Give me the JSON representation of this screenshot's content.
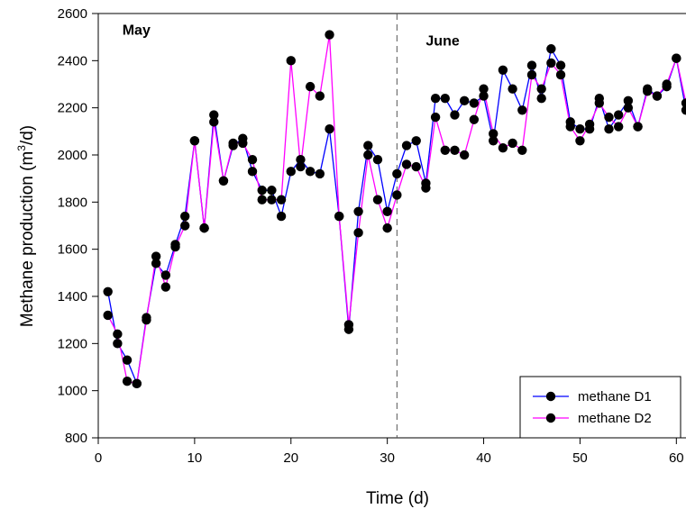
{
  "chart_data": {
    "type": "line",
    "title": "",
    "xlabel": "Time (d)",
    "ylabel_parts": [
      "Methane production (m",
      "3",
      "/d)"
    ],
    "xlim": [
      0,
      61
    ],
    "ylim": [
      800,
      2600
    ],
    "x_ticks": [
      0,
      10,
      20,
      30,
      40,
      50,
      60
    ],
    "y_ticks": [
      800,
      1000,
      1200,
      1400,
      1600,
      1800,
      2000,
      2200,
      2400,
      2600
    ],
    "grid": false,
    "legend_position": "bottom-right",
    "annotations": [
      {
        "text": "May",
        "x": 2.5,
        "y": 2510
      },
      {
        "text": "June",
        "x": 34,
        "y": 2465
      }
    ],
    "vline": {
      "x": 31,
      "style": "dashed"
    },
    "series": [
      {
        "name": "methane D1",
        "color": "#0000ff",
        "marker": "circle",
        "x": [
          1,
          2,
          3,
          4,
          5,
          6,
          7,
          8,
          9,
          10,
          11,
          12,
          13,
          14,
          15,
          16,
          17,
          18,
          19,
          20,
          21,
          22,
          23,
          24,
          25,
          26,
          27,
          28,
          29,
          30,
          31,
          32,
          33,
          34,
          35,
          36,
          37,
          38,
          39,
          40,
          41,
          42,
          43,
          44,
          45,
          46,
          47,
          48,
          49,
          50,
          51,
          52,
          53,
          54,
          55,
          56,
          57,
          58,
          59,
          60,
          61
        ],
        "values": [
          1420,
          1200,
          1130,
          1030,
          1310,
          1540,
          1490,
          1620,
          1740,
          2060,
          1690,
          2170,
          1890,
          2040,
          2070,
          1930,
          1850,
          1850,
          1740,
          1930,
          1980,
          1930,
          1920,
          2110,
          1740,
          1260,
          1760,
          2040,
          1980,
          1760,
          1920,
          2040,
          2060,
          1880,
          2240,
          2240,
          2170,
          2230,
          2220,
          2250,
          2060,
          2360,
          2280,
          2190,
          2380,
          2240,
          2450,
          2380,
          2140,
          2110,
          2110,
          2240,
          2110,
          2170,
          2230,
          2120,
          2280,
          2250,
          2290,
          2410,
          2190
        ]
      },
      {
        "name": "methane D2",
        "color": "#ff00ff",
        "marker": "circle",
        "x": [
          1,
          2,
          3,
          4,
          5,
          6,
          7,
          8,
          9,
          10,
          11,
          12,
          13,
          14,
          15,
          16,
          17,
          18,
          19,
          20,
          21,
          22,
          23,
          24,
          25,
          26,
          27,
          28,
          29,
          30,
          31,
          32,
          33,
          34,
          35,
          36,
          37,
          38,
          39,
          40,
          41,
          42,
          43,
          44,
          45,
          46,
          47,
          48,
          49,
          50,
          51,
          52,
          53,
          54,
          55,
          56,
          57,
          58,
          59,
          60,
          61
        ],
        "values": [
          1320,
          1240,
          1040,
          1030,
          1300,
          1570,
          1440,
          1610,
          1700,
          2060,
          1690,
          2140,
          1890,
          2050,
          2050,
          1980,
          1810,
          1810,
          1810,
          2400,
          1950,
          2290,
          2250,
          2510,
          1740,
          1280,
          1670,
          2000,
          1810,
          1690,
          1830,
          1960,
          1950,
          1860,
          2160,
          2020,
          2020,
          2000,
          2150,
          2280,
          2090,
          2030,
          2050,
          2020,
          2340,
          2280,
          2390,
          2340,
          2120,
          2060,
          2130,
          2220,
          2160,
          2120,
          2200,
          2120,
          2270,
          2250,
          2300,
          2410,
          2220
        ]
      }
    ]
  }
}
